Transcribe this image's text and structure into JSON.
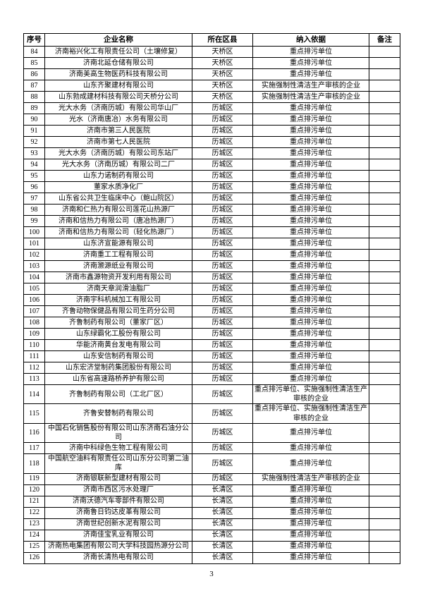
{
  "page": {
    "number": "3"
  },
  "table": {
    "headers": [
      "序号",
      "企业名称",
      "所在区县",
      "纳入依据",
      "备注"
    ],
    "rows": [
      {
        "no": "84",
        "name": "济南裕兴化工有限责任公司（土壤修复）",
        "district": "天桥区",
        "basis": "重点排污单位",
        "remark": ""
      },
      {
        "no": "85",
        "name": "济南北延仓储有限公司",
        "district": "天桥区",
        "basis": "重点排污单位",
        "remark": ""
      },
      {
        "no": "86",
        "name": "济南美高生物医药科技有限公司",
        "district": "天桥区",
        "basis": "重点排污单位",
        "remark": ""
      },
      {
        "no": "87",
        "name": "山东齐聚建材有限公司",
        "district": "天桥区",
        "basis": "实施强制性清洁生产审核的企业",
        "remark": ""
      },
      {
        "no": "88",
        "name": "山东勃成建材科技有限公司天桥分公司",
        "district": "天桥区",
        "basis": "实施强制性清洁生产审核的企业",
        "remark": ""
      },
      {
        "no": "89",
        "name": "光大水务（济南历城）有限公司华山厂",
        "district": "历城区",
        "basis": "重点排污单位",
        "remark": ""
      },
      {
        "no": "90",
        "name": "光水（济南唐冶）水务有限公司",
        "district": "历城区",
        "basis": "重点排污单位",
        "remark": ""
      },
      {
        "no": "91",
        "name": "济南市第三人民医院",
        "district": "历城区",
        "basis": "重点排污单位",
        "remark": ""
      },
      {
        "no": "92",
        "name": "济南市第七人民医院",
        "district": "历城区",
        "basis": "重点排污单位",
        "remark": ""
      },
      {
        "no": "93",
        "name": "光大水务（济南历城）有限公司东站厂",
        "district": "历城区",
        "basis": "重点排污单位",
        "remark": ""
      },
      {
        "no": "94",
        "name": "光大水务（济南历城）有限公司二厂",
        "district": "历城区",
        "basis": "重点排污单位",
        "remark": ""
      },
      {
        "no": "95",
        "name": "山东力诺制药有限公司",
        "district": "历城区",
        "basis": "重点排污单位",
        "remark": ""
      },
      {
        "no": "96",
        "name": "董家水质净化厂",
        "district": "历城区",
        "basis": "重点排污单位",
        "remark": ""
      },
      {
        "no": "97",
        "name": "山东省公共卫生临床中心（鲍山院区）",
        "district": "历城区",
        "basis": "重点排污单位",
        "remark": ""
      },
      {
        "no": "98",
        "name": "济南和仁热力有限公司莲花山热源厂",
        "district": "历城区",
        "basis": "重点排污单位",
        "remark": ""
      },
      {
        "no": "99",
        "name": "济南和信热力有限公司（唐冶热源厂）",
        "district": "历城区",
        "basis": "重点排污单位",
        "remark": ""
      },
      {
        "no": "100",
        "name": "济南和信热力有限公司（轻化热源厂）",
        "district": "历城区",
        "basis": "重点排污单位",
        "remark": ""
      },
      {
        "no": "101",
        "name": "山东济宣能源有限公司",
        "district": "历城区",
        "basis": "重点排污单位",
        "remark": ""
      },
      {
        "no": "102",
        "name": "济南重工工程有限公司",
        "district": "历城区",
        "basis": "重点排污单位",
        "remark": ""
      },
      {
        "no": "103",
        "name": "济南灏源纸业有限公司",
        "district": "历城区",
        "basis": "重点排污单位",
        "remark": ""
      },
      {
        "no": "104",
        "name": "济南市鑫源物资开发利用有限公司",
        "district": "历城区",
        "basis": "重点排污单位",
        "remark": ""
      },
      {
        "no": "105",
        "name": "济南天章润滑油脂厂",
        "district": "历城区",
        "basis": "重点排污单位",
        "remark": ""
      },
      {
        "no": "106",
        "name": "济南宇科机械加工有限公司",
        "district": "历城区",
        "basis": "重点排污单位",
        "remark": ""
      },
      {
        "no": "107",
        "name": "齐鲁动物保健品有限公司生药分公司",
        "district": "历城区",
        "basis": "重点排污单位",
        "remark": ""
      },
      {
        "no": "108",
        "name": "齐鲁制药有限公司（董家厂区）",
        "district": "历城区",
        "basis": "重点排污单位",
        "remark": ""
      },
      {
        "no": "109",
        "name": "山东绿霸化工股份有限公司",
        "district": "历城区",
        "basis": "重点排污单位",
        "remark": ""
      },
      {
        "no": "110",
        "name": "华能济南黄台发电有限公司",
        "district": "历城区",
        "basis": "重点排污单位",
        "remark": ""
      },
      {
        "no": "111",
        "name": "山东安信制药有限公司",
        "district": "历城区",
        "basis": "重点排污单位",
        "remark": ""
      },
      {
        "no": "112",
        "name": "山东宏济堂制药集团股份有限公司",
        "district": "历城区",
        "basis": "重点排污单位",
        "remark": ""
      },
      {
        "no": "113",
        "name": "山东省高速路桥养护有限公司",
        "district": "历城区",
        "basis": "重点排污单位",
        "remark": ""
      },
      {
        "no": "114",
        "name": "齐鲁制药有限公司（工北厂区）",
        "district": "历城区",
        "basis": "重点排污单位、实施强制性清洁生产审核的企业",
        "remark": ""
      },
      {
        "no": "115",
        "name": "齐鲁安替制药有限公司",
        "district": "历城区",
        "basis": "重点排污单位、实施强制性清洁生产审核的企业",
        "remark": ""
      },
      {
        "no": "116",
        "name": "中国石化销售股份有限公司山东济南石油分公司",
        "district": "历城区",
        "basis": "重点排污单位",
        "remark": ""
      },
      {
        "no": "117",
        "name": "济南中科绿色生物工程有限公司",
        "district": "历城区",
        "basis": "重点排污单位",
        "remark": ""
      },
      {
        "no": "118",
        "name": "中国航空油料有限责任公司山东分公司第二油库",
        "district": "历城区",
        "basis": "重点排污单位",
        "remark": ""
      },
      {
        "no": "119",
        "name": "济南银联新型建材有限公司",
        "district": "历城区",
        "basis": "实施强制性清洁生产审核的企业",
        "remark": ""
      },
      {
        "no": "120",
        "name": "济南市西区污水处理厂",
        "district": "长清区",
        "basis": "重点排污单位",
        "remark": ""
      },
      {
        "no": "121",
        "name": "济南沃德汽车零部件有限公司",
        "district": "长清区",
        "basis": "重点排污单位",
        "remark": ""
      },
      {
        "no": "122",
        "name": "济南鲁日钧达皮革有限公司",
        "district": "长清区",
        "basis": "重点排污单位",
        "remark": ""
      },
      {
        "no": "123",
        "name": "济南世纪创新水泥有限公司",
        "district": "长清区",
        "basis": "重点排污单位",
        "remark": ""
      },
      {
        "no": "124",
        "name": "济南佳宝乳业有限公司",
        "district": "长清区",
        "basis": "重点排污单位",
        "remark": ""
      },
      {
        "no": "125",
        "name": "济南热电集团有限公司大学科技园热源分公司",
        "district": "长清区",
        "basis": "重点排污单位",
        "remark": ""
      },
      {
        "no": "126",
        "name": "济南长清热电有限公司",
        "district": "长清区",
        "basis": "重点排污单位",
        "remark": ""
      }
    ]
  }
}
